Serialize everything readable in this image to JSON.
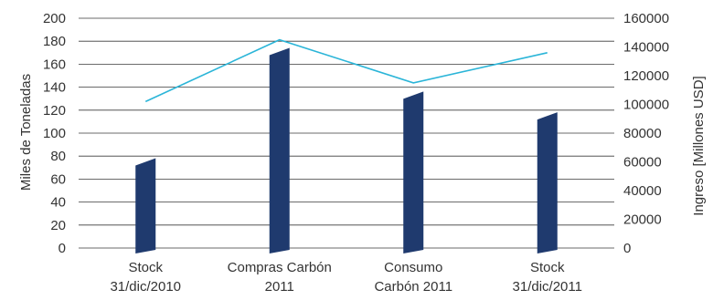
{
  "chart_data": {
    "type": "bar",
    "categories": [
      [
        "Stock",
        "31/dic/2010"
      ],
      [
        "Compras Carbón",
        "2011"
      ],
      [
        "Consumo",
        "Carbón 2011"
      ],
      [
        "Stock",
        "31/dic/2011"
      ]
    ],
    "series": [
      {
        "type": "bar",
        "axis": "left",
        "values": [
          75,
          171,
          133,
          115
        ],
        "color": "#1f3a6e"
      },
      {
        "type": "line",
        "axis": "right",
        "values": [
          102000,
          145000,
          115000,
          136000
        ],
        "color": "#2bb5d8"
      }
    ],
    "ylabel": "Miles de Toneladas",
    "ylabel_right": "Ingreso [Millones USD]",
    "ylim": [
      0,
      200
    ],
    "yticks": [
      "0",
      "20",
      "40",
      "60",
      "80",
      "100",
      "120",
      "140",
      "160",
      "180",
      "200"
    ],
    "ylim_right": [
      0,
      160000
    ],
    "yticks_right": [
      "0",
      "20000",
      "40000",
      "60000",
      "80000",
      "100000",
      "120000",
      "140000",
      "160000"
    ],
    "grid": true,
    "legend": "none"
  }
}
